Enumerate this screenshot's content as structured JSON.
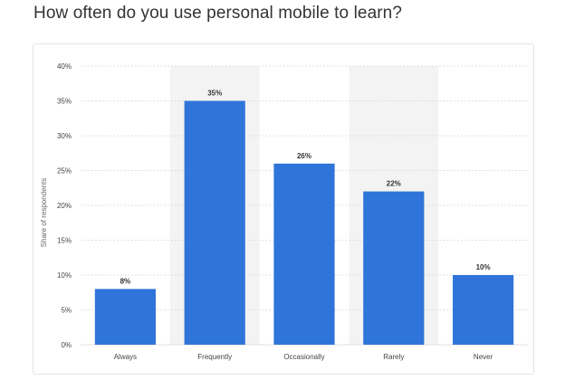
{
  "title": "How often do you use personal mobile to learn?",
  "colors": {
    "bar": "#2f74d8",
    "band": "#f3f3f3",
    "grid": "#d8d8d8"
  },
  "chart_data": {
    "type": "bar",
    "title": "How often do you use personal mobile to learn?",
    "xlabel": "",
    "ylabel": "Share of respondents",
    "ylim": [
      0,
      40
    ],
    "ytick_values": [
      0,
      5,
      10,
      15,
      20,
      25,
      30,
      35,
      40
    ],
    "ytick_labels": [
      "0%",
      "5%",
      "10%",
      "15%",
      "20%",
      "25%",
      "30%",
      "35%",
      "40%"
    ],
    "categories": [
      "Always",
      "Frequently",
      "Occasionally",
      "Rarely",
      "Never"
    ],
    "values": [
      8,
      35,
      26,
      22,
      10
    ],
    "data_labels": [
      "8%",
      "35%",
      "26%",
      "22%",
      "10%"
    ],
    "grid": true,
    "legend": "none"
  }
}
